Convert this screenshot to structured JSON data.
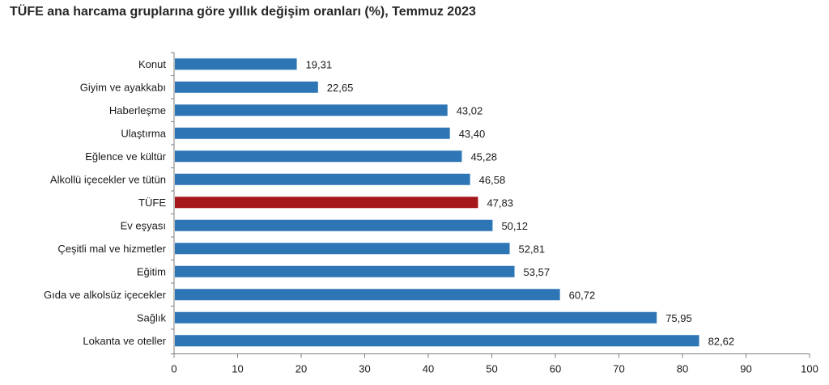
{
  "chart_data": {
    "type": "bar",
    "orientation": "horizontal",
    "title": "TÜFE ana harcama gruplarına göre yıllık değişim oranları (%), Temmuz 2023",
    "categories": [
      "Konut",
      "Giyim ve ayakkabı",
      "Haberleşme",
      "Ulaştırma",
      "Eğlence ve kültür",
      "Alkollü içecekler ve tütün",
      "TÜFE",
      "Ev eşyası",
      "Çeşitli mal ve hizmetler",
      "Eğitim",
      "Gıda ve alkolsüz içecekler",
      "Sağlık",
      "Lokanta ve oteller"
    ],
    "values": [
      19.31,
      22.65,
      43.02,
      43.4,
      45.28,
      46.58,
      47.83,
      50.12,
      52.81,
      53.57,
      60.72,
      75.95,
      82.62
    ],
    "value_labels": [
      "19,31",
      "22,65",
      "43,02",
      "43,40",
      "45,28",
      "46,58",
      "47,83",
      "50,12",
      "52,81",
      "53,57",
      "60,72",
      "75,95",
      "82,62"
    ],
    "highlight_category": "TÜFE",
    "colors": {
      "bar": "#2e75b6",
      "highlight": "#a5171b",
      "axis": "#7f7f7f"
    },
    "xlim": [
      0,
      100
    ],
    "xticks": [
      0,
      10,
      20,
      30,
      40,
      50,
      60,
      70,
      80,
      90,
      100
    ],
    "xlabel": "",
    "ylabel": "",
    "grid": false,
    "legend": "none"
  }
}
